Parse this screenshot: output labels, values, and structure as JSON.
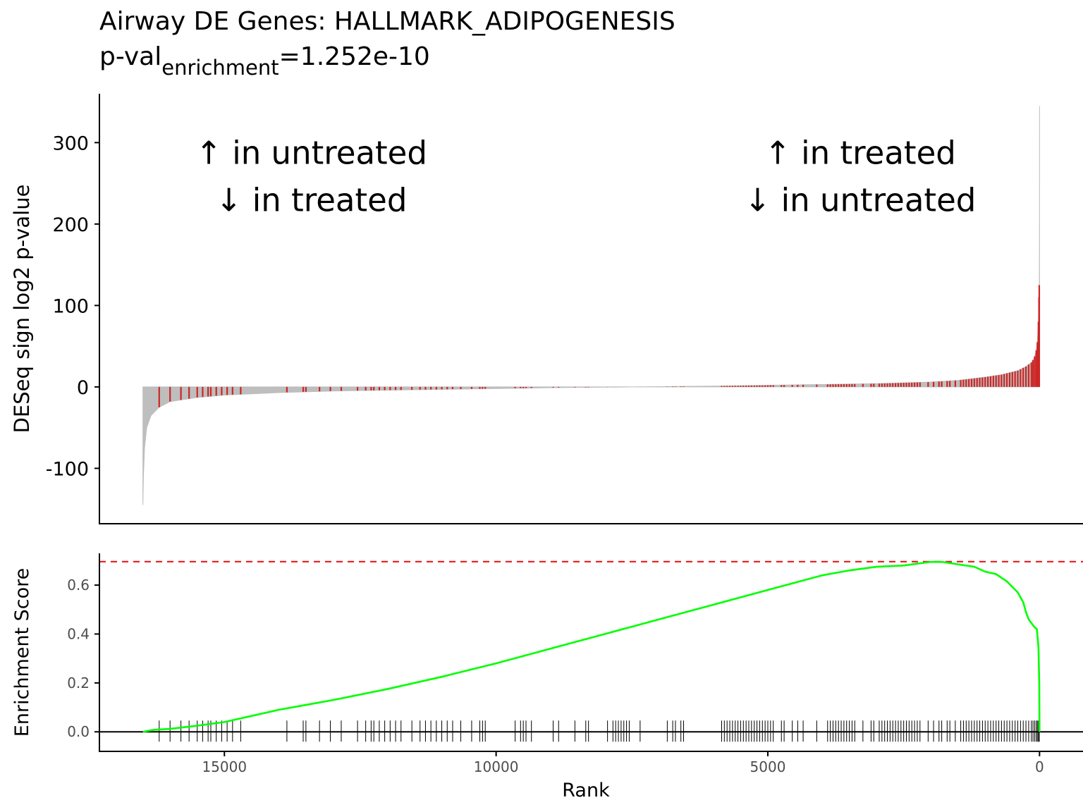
{
  "title": {
    "line1": "Airway DE Genes: HALLMARK_ADIPOGENESIS",
    "pval_prefix": "p-val",
    "pval_subscript": "enrichment",
    "pval_value": "=1.252e-10"
  },
  "chart_data": [
    {
      "type": "bar",
      "name": "ranked-statistic",
      "ylabel": "DESeq sign log2 p-value",
      "xlim": [
        17300,
        -800
      ],
      "ylim": [
        -168,
        360
      ],
      "y_ticks": [
        300,
        200,
        100,
        0,
        -100
      ],
      "y_tick_labels": [
        "300",
        "200",
        "100",
        "0",
        "-100"
      ],
      "n_genes": 16500,
      "profile": {
        "rank": [
          0,
          1,
          3,
          5,
          10,
          20,
          40,
          60,
          100,
          150,
          250,
          400,
          700,
          1000,
          1500,
          2000,
          3000,
          4000,
          5000,
          6000,
          7000,
          7500,
          8000,
          9000,
          10000,
          11000,
          12000,
          13000,
          14000,
          15000,
          15500,
          16000,
          16200,
          16350,
          16430,
          16470,
          16490,
          16500
        ],
        "value": [
          345,
          210,
          150,
          125,
          110,
          80,
          55,
          45,
          35,
          30,
          25,
          20,
          15,
          12,
          8,
          6,
          4,
          3,
          2,
          1,
          0.3,
          0,
          -0.3,
          -1,
          -2,
          -3,
          -4,
          -5,
          -7,
          -10,
          -13,
          -18,
          -25,
          -35,
          -50,
          -75,
          -110,
          -145
        ]
      },
      "colors": {
        "background": "#bebebe",
        "gene_set": "#cd2626"
      },
      "annotations": [
        {
          "text": "↑ in untreated",
          "x": 13400,
          "y": 286
        },
        {
          "text": "↓ in treated",
          "x": 13400,
          "y": 228
        },
        {
          "text": "↑ in treated",
          "x": 3300,
          "y": 286
        },
        {
          "text": "↓ in untreated",
          "x": 3300,
          "y": 228
        }
      ]
    },
    {
      "type": "line",
      "name": "enrichment-score",
      "xlabel": "Rank",
      "ylabel": "Enrichment Score",
      "xlim": [
        17300,
        -800
      ],
      "ylim": [
        -0.08,
        0.73
      ],
      "x_ticks": [
        15000,
        10000,
        5000,
        0
      ],
      "x_tick_labels": [
        "15000",
        "10000",
        "5000",
        "0"
      ],
      "y_ticks": [
        0.0,
        0.2,
        0.4,
        0.6
      ],
      "y_tick_labels": [
        "0.0",
        "0.2",
        "0.4",
        "0.6"
      ],
      "max_es": 0.696,
      "colors": {
        "curve": "#00ff00",
        "max_line": "#e31a1c",
        "ticks": "#000000"
      },
      "curve": {
        "rank": [
          16500,
          16300,
          16000,
          15500,
          15000,
          14500,
          14000,
          13500,
          13000,
          12000,
          11000,
          10000,
          9000,
          8000,
          7000,
          6000,
          5000,
          4500,
          4000,
          3500,
          3000,
          2500,
          2000,
          1800,
          1500,
          1200,
          1000,
          800,
          600,
          400,
          300,
          250,
          200,
          150,
          100,
          50,
          20,
          5,
          0
        ],
        "es": [
          0.0,
          0.008,
          0.012,
          0.025,
          0.04,
          0.065,
          0.09,
          0.11,
          0.13,
          0.175,
          0.225,
          0.28,
          0.34,
          0.4,
          0.46,
          0.52,
          0.58,
          0.61,
          0.64,
          0.66,
          0.675,
          0.68,
          0.695,
          0.695,
          0.685,
          0.675,
          0.655,
          0.645,
          0.615,
          0.57,
          0.53,
          0.49,
          0.46,
          0.445,
          0.43,
          0.42,
          0.35,
          0.2,
          0.0
        ]
      },
      "gene_ranks": [
        16200,
        16000,
        15800,
        15650,
        15500,
        15400,
        15300,
        15250,
        15150,
        15050,
        14950,
        14850,
        14700,
        13850,
        13550,
        13500,
        13250,
        13050,
        12850,
        12550,
        12400,
        12300,
        12250,
        12150,
        12050,
        11950,
        11850,
        11750,
        11550,
        11400,
        11300,
        11200,
        11100,
        11000,
        10900,
        10800,
        10650,
        10450,
        10300,
        10250,
        10200,
        9650,
        9550,
        9500,
        9450,
        9350,
        8950,
        8850,
        8550,
        8350,
        8300,
        7950,
        7850,
        7800,
        7750,
        7700,
        7650,
        7600,
        7550,
        7350,
        6850,
        6750,
        6700,
        6600,
        6550,
        5850,
        5800,
        5750,
        5700,
        5650,
        5600,
        5550,
        5500,
        5450,
        5400,
        5350,
        5300,
        5250,
        5200,
        5150,
        5100,
        5050,
        5000,
        4950,
        4900,
        4750,
        4700,
        4550,
        4450,
        4350,
        4100,
        3900,
        3850,
        3800,
        3750,
        3700,
        3650,
        3600,
        3550,
        3500,
        3450,
        3400,
        3250,
        3100,
        3050,
        2950,
        2900,
        2850,
        2800,
        2750,
        2700,
        2650,
        2600,
        2550,
        2500,
        2450,
        2400,
        2350,
        2300,
        2250,
        2200,
        2050,
        1950,
        1850,
        1800,
        1700,
        1650,
        1550,
        1450,
        1400,
        1350,
        1300,
        1250,
        1200,
        1150,
        1100,
        1050,
        1000,
        950,
        900,
        850,
        800,
        750,
        700,
        650,
        600,
        550,
        500,
        450,
        400,
        350,
        300,
        250,
        200,
        150,
        120,
        90,
        60,
        40,
        20,
        10,
        5
      ]
    }
  ]
}
